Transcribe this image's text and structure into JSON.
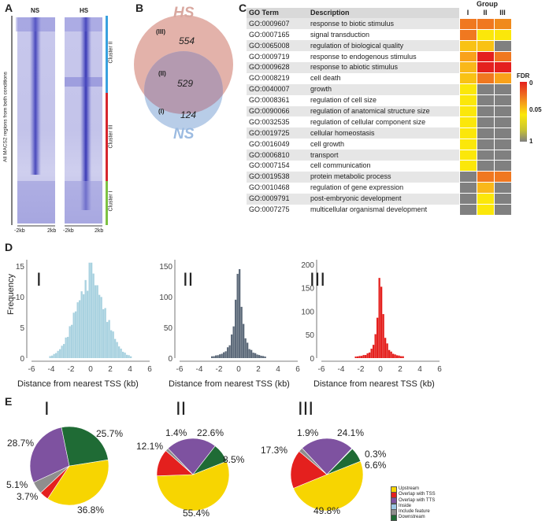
{
  "panel_a": {
    "letter": "A",
    "col_ns": "NS",
    "col_hs": "HS",
    "ylabel": "All MACS2 regions from both conditions",
    "ticks": [
      "-2kb",
      "2kb",
      "-2kb",
      "2kb"
    ],
    "clusters": [
      {
        "label": "Cluster II",
        "color": "#3aa1de"
      },
      {
        "label": "Cluster III",
        "color": "#d6262f"
      },
      {
        "label": "Cluster I",
        "color": "#7dc143"
      }
    ]
  },
  "panel_b": {
    "letter": "B",
    "hs_label": "HS",
    "ns_label": "NS",
    "hs_color": "#e3b2aa",
    "ns_color": "#b8cde8",
    "overlap_color": "#b49ab0",
    "regions": [
      {
        "id": "(III)",
        "value": "554"
      },
      {
        "id": "(II)",
        "value": "529"
      },
      {
        "id": "(I)",
        "value": "124"
      }
    ]
  },
  "panel_c": {
    "letter": "C",
    "header_term": "GO Term",
    "header_desc": "Description",
    "group_title": "Group",
    "groups": [
      "I",
      "II",
      "III"
    ],
    "legend_title": "FDR",
    "legend_ticks": [
      "0",
      "0.05",
      "1"
    ],
    "rows": [
      {
        "term": "GO:0009607",
        "desc": "response to biotic stimulus",
        "colors": [
          "#f07820",
          "#f07820",
          "#f08a1c"
        ]
      },
      {
        "term": "GO:0007165",
        "desc": "signal transduction",
        "colors": [
          "#f07820",
          "#fbe70a",
          "#fbe70a"
        ]
      },
      {
        "term": "GO:0065008",
        "desc": "regulation of biological quality",
        "colors": [
          "#f9c214",
          "#f9c214",
          "#808080"
        ]
      },
      {
        "term": "GO:0009719",
        "desc": "response to endogenous stimulus",
        "colors": [
          "#f9a21a",
          "#e4201e",
          "#f07820"
        ]
      },
      {
        "term": "GO:0009628",
        "desc": "response to abiotic stimulus",
        "colors": [
          "#f9b81a",
          "#e4201e",
          "#e4201e"
        ]
      },
      {
        "term": "GO:0008219",
        "desc": "cell death",
        "colors": [
          "#f9c214",
          "#f07820",
          "#f9a21a"
        ]
      },
      {
        "term": "GO:0040007",
        "desc": "growth",
        "colors": [
          "#fbe70a",
          "#808080",
          "#808080"
        ]
      },
      {
        "term": "GO:0008361",
        "desc": "regulation of cell size",
        "colors": [
          "#fbe70a",
          "#808080",
          "#808080"
        ]
      },
      {
        "term": "GO:0090066",
        "desc": "regulation of anatomical structure size",
        "colors": [
          "#fbe70a",
          "#808080",
          "#808080"
        ]
      },
      {
        "term": "GO:0032535",
        "desc": "regulation of cellular component size",
        "colors": [
          "#fbe70a",
          "#808080",
          "#808080"
        ]
      },
      {
        "term": "GO:0019725",
        "desc": "cellular homeostasis",
        "colors": [
          "#fbe70a",
          "#808080",
          "#808080"
        ]
      },
      {
        "term": "GO:0016049",
        "desc": "cell growth",
        "colors": [
          "#fbe70a",
          "#808080",
          "#808080"
        ]
      },
      {
        "term": "GO:0006810",
        "desc": "transport",
        "colors": [
          "#fbe70a",
          "#808080",
          "#808080"
        ]
      },
      {
        "term": "GO:0007154",
        "desc": "cell communication",
        "colors": [
          "#fbe70a",
          "#808080",
          "#808080"
        ]
      },
      {
        "term": "GO:0019538",
        "desc": "protein metabolic process",
        "colors": [
          "#808080",
          "#f07820",
          "#f07820"
        ]
      },
      {
        "term": "GO:0010468",
        "desc": "regulation of gene expression",
        "colors": [
          "#808080",
          "#f9b81a",
          "#808080"
        ]
      },
      {
        "term": "GO:0009791",
        "desc": "post-embryonic development",
        "colors": [
          "#808080",
          "#fbe70a",
          "#808080"
        ]
      },
      {
        "term": "GO:0007275",
        "desc": "multicellular organismal development",
        "colors": [
          "#808080",
          "#fbe70a",
          "#808080"
        ]
      }
    ]
  },
  "panel_d": {
    "letter": "D",
    "ylabel": "Frequency",
    "xlabel": "Distance from nearest TSS (kb)",
    "x_ticks": [
      "-6",
      "-4",
      "-2",
      "0",
      "2",
      "4",
      "6"
    ],
    "plots": [
      {
        "label": "I",
        "color": "#a9d2e0",
        "y_ticks": [
          "0",
          "5",
          "10",
          "15"
        ],
        "ymax": 16
      },
      {
        "label": "II",
        "color": "#5d6a7a",
        "y_ticks": [
          "0",
          "50",
          "100",
          "150"
        ],
        "ymax": 160
      },
      {
        "label": "III",
        "color": "#e4201e",
        "y_ticks": [
          "0",
          "50",
          "100",
          "150",
          "200"
        ],
        "ymax": 210
      }
    ]
  },
  "panel_e": {
    "letter": "E",
    "pies": [
      {
        "label": "I",
        "slices": [
          {
            "name": "Upstream",
            "pct": 36.8,
            "color": "#f7d501"
          },
          {
            "name": "Overlap with TSS",
            "pct": 3.7,
            "color": "#e4201e"
          },
          {
            "name": "Include feature",
            "pct": 5.1,
            "color": "#8e8e8e"
          },
          {
            "name": "Overlap with TTS",
            "pct": 28.7,
            "color": "#7e52a0"
          },
          {
            "name": "Downstream",
            "pct": 25.7,
            "color": "#1f6b35"
          }
        ],
        "labels": [
          "36.8%",
          "3.7%",
          "5.1%",
          "28.7%",
          "25.7%"
        ]
      },
      {
        "label": "II",
        "slices": [
          {
            "name": "Upstream",
            "pct": 55.4,
            "color": "#f7d501"
          },
          {
            "name": "Overlap with TSS",
            "pct": 12.1,
            "color": "#e4201e"
          },
          {
            "name": "Include feature",
            "pct": 1.4,
            "color": "#8e8e8e"
          },
          {
            "name": "Overlap with TTS",
            "pct": 22.6,
            "color": "#7e52a0"
          },
          {
            "name": "Downstream",
            "pct": 8.5,
            "color": "#1f6b35"
          }
        ],
        "labels": [
          "55.4%",
          "12.1%",
          "1.4%",
          "22.6%",
          "8.5%"
        ]
      },
      {
        "label": "III",
        "slices": [
          {
            "name": "Upstream",
            "pct": 49.8,
            "color": "#f7d501"
          },
          {
            "name": "Overlap with TSS",
            "pct": 17.3,
            "color": "#e4201e"
          },
          {
            "name": "Include feature",
            "pct": 1.9,
            "color": "#8e8e8e"
          },
          {
            "name": "Overlap with TTS",
            "pct": 24.1,
            "color": "#7e52a0"
          },
          {
            "name": "Inside",
            "pct": 0.3,
            "color": "#9bc6e3"
          },
          {
            "name": "Downstream",
            "pct": 6.6,
            "color": "#1f6b35"
          }
        ],
        "labels": [
          "49.8%",
          "17.3%",
          "1.9%",
          "24.1%",
          "0.3%",
          "6.6%"
        ]
      }
    ],
    "legend": [
      {
        "name": "Upstream",
        "color": "#f7d501"
      },
      {
        "name": "Overlap with TSS",
        "color": "#e4201e"
      },
      {
        "name": "Overlap with TTS",
        "color": "#7e52a0"
      },
      {
        "name": "Inside",
        "color": "#9bc6e3"
      },
      {
        "name": "Include feature",
        "color": "#8e8e8e"
      },
      {
        "name": "Downstream",
        "color": "#1f6b35"
      }
    ]
  }
}
